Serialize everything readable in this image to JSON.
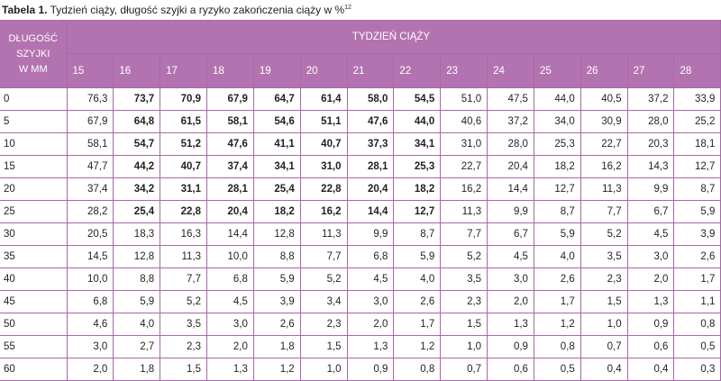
{
  "caption": {
    "label": "Tabela 1.",
    "text": " Tydzień ciąży, długość szyjki a ryzyko zakończenia ciąży w %",
    "ref": "12"
  },
  "header": {
    "row_label_lines": [
      "DŁUGOŚĆ",
      "SZYJKI",
      "W MM"
    ],
    "group_title": "TYDZIEŃ CIĄŻY",
    "weeks": [
      "15",
      "16",
      "17",
      "18",
      "19",
      "20",
      "21",
      "22",
      "23",
      "24",
      "25",
      "26",
      "27",
      "28"
    ]
  },
  "bold_week_columns": [
    "16",
    "17",
    "18",
    "19",
    "20",
    "21",
    "22"
  ],
  "bold_row_labels": [
    "0",
    "5",
    "10",
    "15",
    "20",
    "25"
  ],
  "rows": [
    {
      "length": "0",
      "values": [
        "76,3",
        "73,7",
        "70,9",
        "67,9",
        "64,7",
        "61,4",
        "58,0",
        "54,5",
        "51,0",
        "47,5",
        "44,0",
        "40,5",
        "37,2",
        "33,9"
      ]
    },
    {
      "length": "5",
      "values": [
        "67,9",
        "64,8",
        "61,5",
        "58,1",
        "54,6",
        "51,1",
        "47,6",
        "44,0",
        "40,6",
        "37,2",
        "34,0",
        "30,9",
        "28,0",
        "25,2"
      ]
    },
    {
      "length": "10",
      "values": [
        "58,1",
        "54,7",
        "51,2",
        "47,6",
        "41,1",
        "40,7",
        "37,3",
        "34,1",
        "31,0",
        "28,0",
        "25,3",
        "22,7",
        "20,3",
        "18,1"
      ]
    },
    {
      "length": "15",
      "values": [
        "47,7",
        "44,2",
        "40,7",
        "37,4",
        "34,1",
        "31,0",
        "28,1",
        "25,3",
        "22,7",
        "20,4",
        "18,2",
        "16,2",
        "14,3",
        "12,7"
      ]
    },
    {
      "length": "20",
      "values": [
        "37,4",
        "34,2",
        "31,1",
        "28,1",
        "25,4",
        "22,8",
        "20,4",
        "18,2",
        "16,2",
        "14,4",
        "12,7",
        "11,3",
        "9,9",
        "8,7"
      ]
    },
    {
      "length": "25",
      "values": [
        "28,2",
        "25,4",
        "22,8",
        "20,4",
        "18,2",
        "16,2",
        "14,4",
        "12,7",
        "11,3",
        "9,9",
        "8,7",
        "7,7",
        "6,7",
        "5,9"
      ]
    },
    {
      "length": "30",
      "values": [
        "20,5",
        "18,3",
        "16,3",
        "14,4",
        "12,8",
        "11,3",
        "9,9",
        "8,7",
        "7,7",
        "6,7",
        "5,9",
        "5,2",
        "4,5",
        "3,9"
      ]
    },
    {
      "length": "35",
      "values": [
        "14,5",
        "12,8",
        "11,3",
        "10,0",
        "8,8",
        "7,7",
        "6,8",
        "5,9",
        "5,2",
        "4,5",
        "4,0",
        "3,5",
        "3,0",
        "2,6"
      ]
    },
    {
      "length": "40",
      "values": [
        "10,0",
        "8,8",
        "7,7",
        "6,8",
        "5,9",
        "5,2",
        "4,5",
        "4,0",
        "3,5",
        "3,0",
        "2,6",
        "2,3",
        "2,0",
        "1,7"
      ]
    },
    {
      "length": "45",
      "values": [
        "6,8",
        "5,9",
        "5,2",
        "4,5",
        "3,9",
        "3,4",
        "3,0",
        "2,6",
        "2,3",
        "2,0",
        "1,7",
        "1,5",
        "1,3",
        "1,1"
      ]
    },
    {
      "length": "50",
      "values": [
        "4,6",
        "4,0",
        "3,5",
        "3,0",
        "2,6",
        "2,3",
        "2,0",
        "1,7",
        "1,5",
        "1,3",
        "1,2",
        "1,0",
        "0,9",
        "0,8"
      ]
    },
    {
      "length": "55",
      "values": [
        "3,0",
        "2,7",
        "2,3",
        "2,0",
        "1,8",
        "1,5",
        "1,3",
        "1,2",
        "1,0",
        "0,9",
        "0,8",
        "0,7",
        "0,6",
        "0,5"
      ]
    },
    {
      "length": "60",
      "values": [
        "2,0",
        "1,8",
        "1,5",
        "1,3",
        "1,2",
        "1,0",
        "0,9",
        "0,8",
        "0,7",
        "0,6",
        "0,5",
        "0,4",
        "0,4",
        "0,3"
      ]
    }
  ]
}
